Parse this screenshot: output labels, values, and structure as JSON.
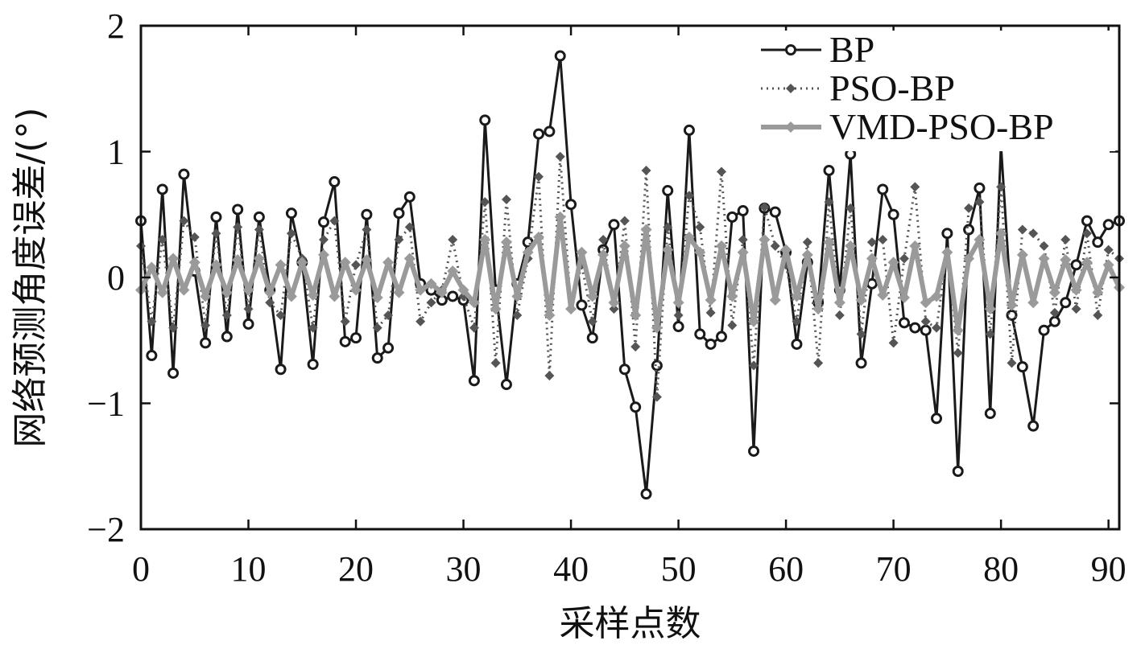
{
  "chart_data": {
    "type": "line",
    "xlabel": "采样点数",
    "ylabel": "网络预测角度误差/(°)",
    "xlim": [
      0,
      91
    ],
    "ylim": [
      -2,
      2
    ],
    "x_ticks": [
      0,
      10,
      20,
      30,
      40,
      50,
      60,
      70,
      80,
      90
    ],
    "y_ticks": [
      -2,
      -1,
      0,
      1,
      2
    ],
    "x_tick_labels": [
      "0",
      "10",
      "20",
      "30",
      "40",
      "50",
      "60",
      "70",
      "80",
      "90"
    ],
    "y_tick_labels": [
      "−2",
      "−1",
      "0",
      "1",
      "2"
    ],
    "grid": false,
    "legend_position": "top-right",
    "series": [
      {
        "name": "BP",
        "color": "#1a1a1a",
        "style": "solid-circle",
        "x": [
          0,
          1,
          2,
          3,
          4,
          5,
          6,
          7,
          8,
          9,
          10,
          11,
          12,
          13,
          14,
          15,
          16,
          17,
          18,
          19,
          20,
          21,
          22,
          23,
          24,
          25,
          26,
          27,
          28,
          29,
          30,
          31,
          32,
          33,
          34,
          35,
          36,
          37,
          38,
          39,
          40,
          41,
          42,
          43,
          44,
          45,
          46,
          47,
          48,
          49,
          50,
          51,
          52,
          53,
          54,
          55,
          56,
          57,
          58,
          59,
          60,
          61,
          62,
          63,
          64,
          65,
          66,
          67,
          68,
          69,
          70,
          71,
          72,
          73,
          74,
          75,
          76,
          77,
          78,
          79,
          80,
          81,
          82,
          83,
          84,
          85,
          86,
          87,
          88,
          89,
          90,
          91
        ],
        "values": [
          0.45,
          -0.62,
          0.7,
          -0.76,
          0.82,
          0.05,
          -0.52,
          0.48,
          -0.47,
          0.54,
          -0.37,
          0.48,
          -0.1,
          -0.73,
          0.51,
          0.12,
          -0.69,
          0.44,
          0.76,
          -0.51,
          -0.48,
          0.5,
          -0.64,
          -0.56,
          0.51,
          0.64,
          -0.05,
          -0.1,
          -0.18,
          -0.15,
          -0.18,
          -0.82,
          1.25,
          -0.1,
          -0.85,
          -0.05,
          0.28,
          1.14,
          1.16,
          1.76,
          0.58,
          -0.22,
          -0.48,
          0.22,
          0.42,
          -0.73,
          -1.03,
          -1.72,
          -0.7,
          0.69,
          -0.39,
          1.17,
          -0.45,
          -0.53,
          -0.47,
          0.48,
          0.53,
          -1.38,
          0.55,
          0.52,
          0.2,
          -0.53,
          0.12,
          -0.2,
          0.85,
          -0.1,
          0.98,
          -0.68,
          -0.05,
          0.7,
          0.5,
          -0.36,
          -0.4,
          -0.42,
          -1.12,
          0.35,
          -1.54,
          0.38,
          0.71,
          -1.08,
          1.05,
          -0.3,
          -0.71,
          -1.18,
          -0.42,
          -0.35,
          -0.2,
          0.1,
          0.45,
          0.28,
          0.42,
          0.45
        ]
      },
      {
        "name": "PSO-BP",
        "color": "#555555",
        "style": "dotted-diamond",
        "x": [
          0,
          1,
          2,
          3,
          4,
          5,
          6,
          7,
          8,
          9,
          10,
          11,
          12,
          13,
          14,
          15,
          16,
          17,
          18,
          19,
          20,
          21,
          22,
          23,
          24,
          25,
          26,
          27,
          28,
          29,
          30,
          31,
          32,
          33,
          34,
          35,
          36,
          37,
          38,
          39,
          40,
          41,
          42,
          43,
          44,
          45,
          46,
          47,
          48,
          49,
          50,
          51,
          52,
          53,
          54,
          55,
          56,
          57,
          58,
          59,
          60,
          61,
          62,
          63,
          64,
          65,
          66,
          67,
          68,
          69,
          70,
          71,
          72,
          73,
          74,
          75,
          76,
          77,
          78,
          79,
          80,
          81,
          82,
          83,
          84,
          85,
          86,
          87,
          88,
          89,
          90,
          91
        ],
        "values": [
          0.25,
          -0.35,
          0.3,
          -0.4,
          0.45,
          0.32,
          -0.38,
          0.35,
          -0.3,
          0.4,
          -0.25,
          0.38,
          -0.2,
          -0.3,
          0.35,
          0.15,
          -0.4,
          0.3,
          0.45,
          -0.35,
          0.1,
          0.38,
          -0.4,
          -0.3,
          0.3,
          0.4,
          -0.35,
          -0.2,
          -0.1,
          0.3,
          -0.15,
          -0.4,
          0.6,
          -0.68,
          0.62,
          -0.3,
          0.15,
          0.8,
          -0.78,
          0.96,
          -0.25,
          0.1,
          -0.35,
          0.3,
          -0.25,
          0.45,
          -0.55,
          0.85,
          -0.95,
          0.4,
          -0.3,
          0.65,
          0.4,
          -0.28,
          0.84,
          -0.38,
          0.3,
          -0.7,
          0.56,
          0.25,
          0.1,
          -0.35,
          0.28,
          -0.68,
          0.6,
          -0.3,
          0.55,
          -0.45,
          0.28,
          0.3,
          -0.52,
          0.15,
          0.72,
          -0.35,
          -0.4,
          0.2,
          -0.6,
          0.55,
          0.6,
          -0.45,
          0.72,
          -0.68,
          0.38,
          0.35,
          0.25,
          -0.28,
          0.3,
          -0.25,
          0.35,
          -0.3,
          0.22,
          0.15
        ]
      },
      {
        "name": "VMD-PSO-BP",
        "color": "#9a9a9a",
        "style": "solid-diamond-thick",
        "x": [
          0,
          1,
          2,
          3,
          4,
          5,
          6,
          7,
          8,
          9,
          10,
          11,
          12,
          13,
          14,
          15,
          16,
          17,
          18,
          19,
          20,
          21,
          22,
          23,
          24,
          25,
          26,
          27,
          28,
          29,
          30,
          31,
          32,
          33,
          34,
          35,
          36,
          37,
          38,
          39,
          40,
          41,
          42,
          43,
          44,
          45,
          46,
          47,
          48,
          49,
          50,
          51,
          52,
          53,
          54,
          55,
          56,
          57,
          58,
          59,
          60,
          61,
          62,
          63,
          64,
          65,
          66,
          67,
          68,
          69,
          70,
          71,
          72,
          73,
          74,
          75,
          76,
          77,
          78,
          79,
          80,
          81,
          82,
          83,
          84,
          85,
          86,
          87,
          88,
          89,
          90,
          91
        ],
        "values": [
          -0.1,
          0.08,
          -0.12,
          0.15,
          -0.1,
          0.12,
          -0.15,
          0.1,
          -0.12,
          0.14,
          -0.1,
          0.15,
          -0.12,
          0.1,
          -0.15,
          0.12,
          -0.14,
          0.18,
          -0.15,
          0.12,
          -0.1,
          0.14,
          -0.16,
          0.12,
          -0.12,
          0.15,
          -0.1,
          -0.05,
          -0.12,
          0.05,
          -0.1,
          -0.2,
          0.3,
          -0.25,
          0.28,
          -0.15,
          0.2,
          0.32,
          -0.3,
          0.48,
          -0.25,
          0.2,
          -0.15,
          0.18,
          -0.2,
          0.25,
          -0.3,
          0.38,
          -0.4,
          0.22,
          -0.2,
          0.32,
          0.2,
          -0.18,
          0.25,
          -0.15,
          0.2,
          -0.35,
          0.3,
          -0.18,
          0.22,
          -0.15,
          0.18,
          -0.25,
          0.28,
          -0.2,
          0.25,
          -0.18,
          0.15,
          -0.14,
          0.12,
          -0.16,
          0.25,
          -0.2,
          -0.15,
          0.2,
          -0.42,
          0.15,
          0.3,
          -0.25,
          0.35,
          -0.22,
          0.18,
          -0.2,
          0.15,
          -0.12,
          0.14,
          -0.1,
          0.12,
          -0.12,
          0.1,
          -0.08
        ]
      }
    ]
  }
}
